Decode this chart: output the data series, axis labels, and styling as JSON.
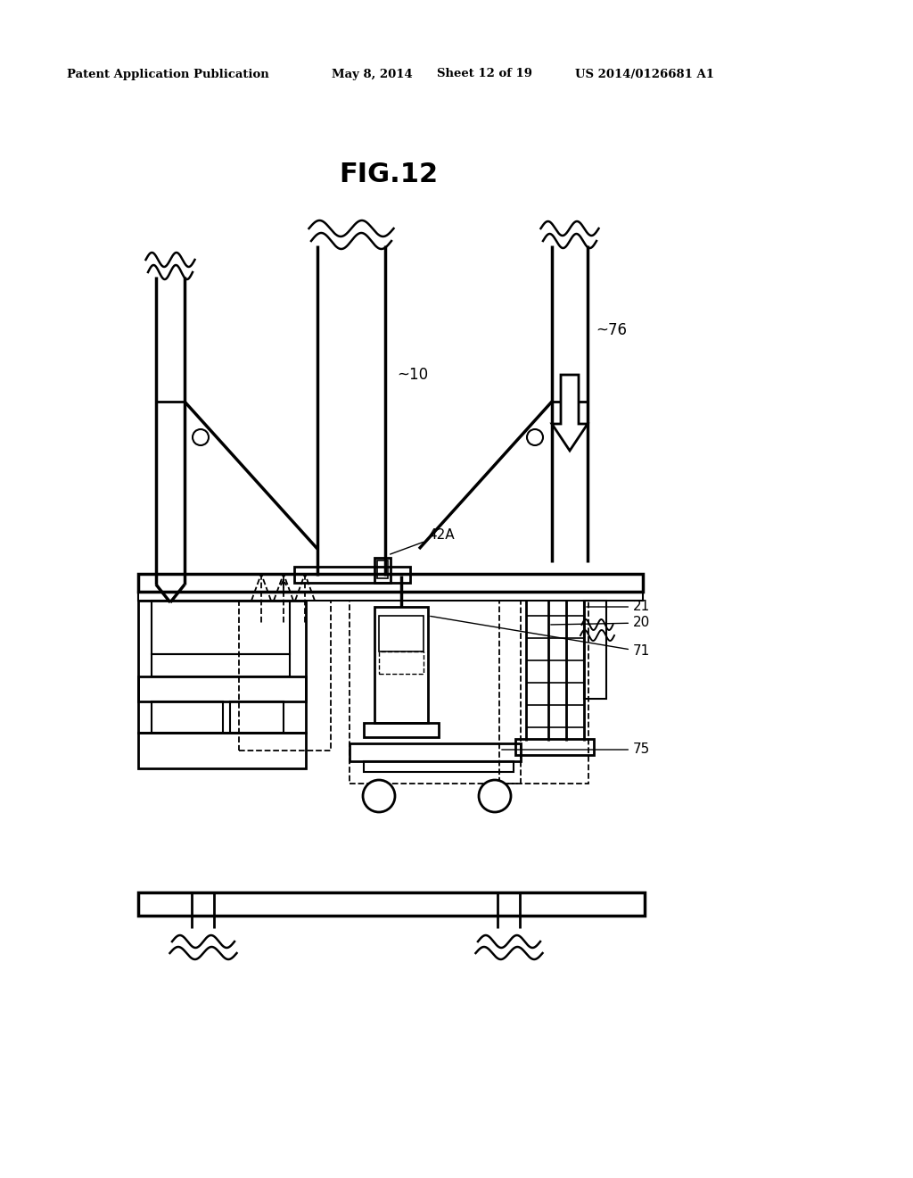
{
  "bg_color": "#ffffff",
  "header_text": "Patent Application Publication",
  "header_date": "May 8, 2014",
  "header_sheet": "Sheet 12 of 19",
  "header_patent": "US 2014/0126681 A1",
  "fig_title": "FIG.12"
}
